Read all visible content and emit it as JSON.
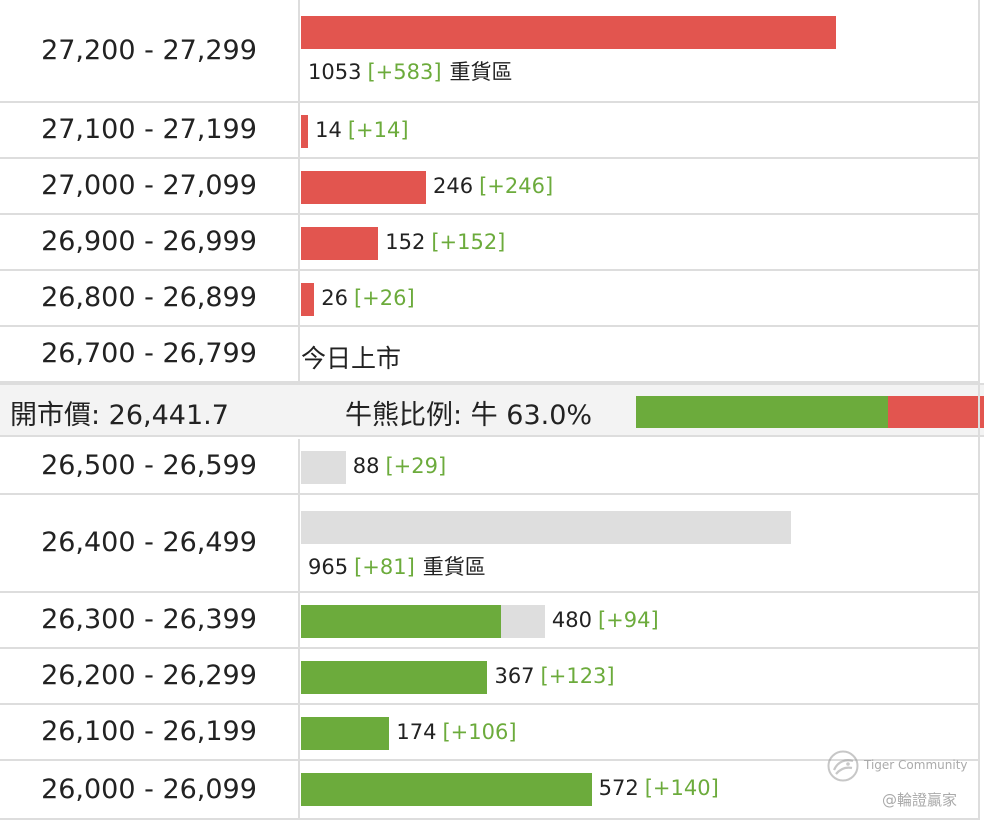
{
  "colors": {
    "bull": "#6cab3c",
    "bear": "#e2554f",
    "neutral": "#dedede",
    "change": "#6cab3c"
  },
  "chart_data": {
    "type": "bar",
    "axis_max": 1053,
    "rows": [
      {
        "range": "27,200 - 27,299",
        "kind": "bear",
        "total": 1053,
        "count_label": "1053",
        "change_label": "[+583]",
        "note": "重貨區"
      },
      {
        "range": "27,100 - 27,199",
        "kind": "bear",
        "total": 14,
        "count_label": "14",
        "change_label": "[+14]"
      },
      {
        "range": "27,000 - 27,099",
        "kind": "bear",
        "total": 246,
        "count_label": "246",
        "change_label": "[+246]"
      },
      {
        "range": "26,900 - 26,999",
        "kind": "bear",
        "total": 152,
        "count_label": "152",
        "change_label": "[+152]"
      },
      {
        "range": "26,800 - 26,899",
        "kind": "bear",
        "total": 26,
        "count_label": "26",
        "change_label": "[+26]"
      },
      {
        "range": "26,700 - 26,799",
        "kind": "text",
        "text": "今日上市"
      },
      {
        "range": "26,500 - 26,599",
        "kind": "bull",
        "total": 88,
        "filled": 0,
        "count_label": "88",
        "change_label": "[+29]"
      },
      {
        "range": "26,400 - 26,499",
        "kind": "bull",
        "total": 965,
        "filled": 0,
        "count_label": "965",
        "change_label": "[+81]",
        "note": "重貨區"
      },
      {
        "range": "26,300 - 26,399",
        "kind": "bull",
        "total": 480,
        "filled": 394,
        "count_label": "480",
        "change_label": "[+94]"
      },
      {
        "range": "26,200 - 26,299",
        "kind": "bull",
        "total": 367,
        "filled": 367,
        "count_label": "367",
        "change_label": "[+123]"
      },
      {
        "range": "26,100 - 26,199",
        "kind": "bull",
        "total": 174,
        "filled": 174,
        "count_label": "174",
        "change_label": "[+106]"
      },
      {
        "range": "26,000 - 26,099",
        "kind": "bull",
        "total": 572,
        "filled": 572,
        "count_label": "572",
        "change_label": "[+140]"
      }
    ]
  },
  "summary": {
    "open_price_label": "開市價: 26,441.7",
    "ratio_label": "牛熊比例: 牛 63.0%",
    "bull_ratio": 0.63
  },
  "watermark": {
    "line1": "Tiger Community",
    "line2": "@輪證贏家",
    "logo_icon": "tiger-community-logo-icon"
  }
}
